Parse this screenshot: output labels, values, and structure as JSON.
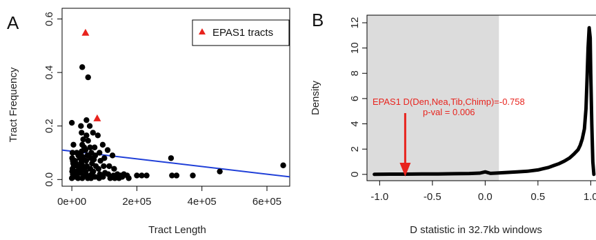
{
  "chart_data": [
    {
      "panel_label": "A",
      "type": "scatter",
      "xlabel": "Tract Length",
      "ylabel": "Tract Frequency",
      "xlim": [
        -30000,
        670000
      ],
      "ylim": [
        -0.025,
        0.64
      ],
      "x_ticks": [
        0,
        200000,
        400000,
        600000
      ],
      "x_tick_labels": [
        "0e+00",
        "2e+05",
        "4e+05",
        "6e+05"
      ],
      "y_ticks": [
        0.0,
        0.2,
        0.4,
        0.6
      ],
      "y_tick_labels": [
        "0.0",
        "0.2",
        "0.4",
        "0.6"
      ],
      "legend": {
        "position": "top-right",
        "entries": [
          "EPAS1 tracts"
        ]
      },
      "series": [
        {
          "marker": "circle",
          "color": "#000000",
          "points": [
            [
              0,
              0.212
            ],
            [
              5000,
              0.13
            ],
            [
              2000,
              0.1
            ],
            [
              1000,
              0.08
            ],
            [
              3000,
              0.07
            ],
            [
              4000,
              0.06
            ],
            [
              6000,
              0.05
            ],
            [
              2000,
              0.04
            ],
            [
              1000,
              0.03
            ],
            [
              3000,
              0.02
            ],
            [
              5000,
              0.01
            ],
            [
              0,
              0.005
            ],
            [
              15000,
              0.1
            ],
            [
              20000,
              0.09
            ],
            [
              25000,
              0.08
            ],
            [
              10000,
              0.07
            ],
            [
              12000,
              0.06
            ],
            [
              18000,
              0.05
            ],
            [
              22000,
              0.04
            ],
            [
              14000,
              0.03
            ],
            [
              16000,
              0.02
            ],
            [
              11000,
              0.01
            ],
            [
              19000,
              0.005
            ],
            [
              28000,
              0.2
            ],
            [
              30000,
              0.175
            ],
            [
              35000,
              0.15
            ],
            [
              32000,
              0.13
            ],
            [
              38000,
              0.12
            ],
            [
              30000,
              0.105
            ],
            [
              27000,
              0.095
            ],
            [
              33000,
              0.085
            ],
            [
              36000,
              0.075
            ],
            [
              29000,
              0.065
            ],
            [
              31000,
              0.055
            ],
            [
              34000,
              0.045
            ],
            [
              37000,
              0.035
            ],
            [
              26000,
              0.025
            ],
            [
              39000,
              0.015
            ],
            [
              32000,
              0.005
            ],
            [
              32000,
              0.42
            ],
            [
              45000,
              0.222
            ],
            [
              45000,
              0.165
            ],
            [
              50000,
              0.145
            ],
            [
              42000,
              0.11
            ],
            [
              48000,
              0.09
            ],
            [
              44000,
              0.07
            ],
            [
              46000,
              0.05
            ],
            [
              43000,
              0.03
            ],
            [
              47000,
              0.015
            ],
            [
              49000,
              0.005
            ],
            [
              50000,
              0.382
            ],
            [
              55000,
              0.2
            ],
            [
              56000,
              0.12
            ],
            [
              60000,
              0.1
            ],
            [
              58000,
              0.08
            ],
            [
              62000,
              0.06
            ],
            [
              57000,
              0.04
            ],
            [
              61000,
              0.02
            ],
            [
              59000,
              0.005
            ],
            [
              65000,
              0.175
            ],
            [
              70000,
              0.12
            ],
            [
              72000,
              0.09
            ],
            [
              68000,
              0.075
            ],
            [
              74000,
              0.05
            ],
            [
              66000,
              0.03
            ],
            [
              71000,
              0.01
            ],
            [
              80000,
              0.165
            ],
            [
              85000,
              0.1
            ],
            [
              88000,
              0.07
            ],
            [
              82000,
              0.04
            ],
            [
              86000,
              0.02
            ],
            [
              84000,
              0.005
            ],
            [
              95000,
              0.13
            ],
            [
              100000,
              0.08
            ],
            [
              98000,
              0.05
            ],
            [
              102000,
              0.025
            ],
            [
              96000,
              0.01
            ],
            [
              110000,
              0.11
            ],
            [
              115000,
              0.05
            ],
            [
              112000,
              0.02
            ],
            [
              118000,
              0.005
            ],
            [
              125000,
              0.09
            ],
            [
              130000,
              0.04
            ],
            [
              128000,
              0.015
            ],
            [
              132000,
              0.005
            ],
            [
              140000,
              0.02
            ],
            [
              145000,
              0.005
            ],
            [
              150000,
              0.015
            ],
            [
              155000,
              0.01
            ],
            [
              160000,
              0.02
            ],
            [
              170000,
              0.015
            ],
            [
              175000,
              0.005
            ],
            [
              200000,
              0.015
            ],
            [
              215000,
              0.015
            ],
            [
              230000,
              0.015
            ],
            [
              305000,
              0.08
            ],
            [
              308000,
              0.015
            ],
            [
              322000,
              0.015
            ],
            [
              372000,
              0.015
            ],
            [
              455000,
              0.03
            ],
            [
              650000,
              0.053
            ]
          ]
        },
        {
          "name": "EPAS1 tracts",
          "marker": "triangle",
          "color": "#e8231d",
          "points": [
            [
              42000,
              0.548
            ],
            [
              78000,
              0.228
            ]
          ]
        }
      ],
      "regression_line": {
        "color": "#1f3fd8",
        "points": [
          [
            -30000,
            0.11
          ],
          [
            670000,
            0.01
          ]
        ]
      }
    },
    {
      "panel_label": "B",
      "type": "line",
      "xlabel": "D statistic in 32.7kb windows",
      "ylabel": "Density",
      "xlim": [
        -1.12,
        1.05
      ],
      "ylim": [
        -0.5,
        12.6
      ],
      "x_ticks": [
        -1.0,
        -0.5,
        0.0,
        0.5,
        1.0
      ],
      "x_tick_labels": [
        "-1.0",
        "-0.5",
        "0.0",
        "0.5",
        "1.0"
      ],
      "y_ticks": [
        0,
        2,
        4,
        6,
        8,
        10,
        12
      ],
      "y_tick_labels": [
        "0",
        "2",
        "4",
        "6",
        "8",
        "10",
        "12"
      ],
      "shaded_region": {
        "x": [
          -1.12,
          0.13
        ],
        "color": "#dcdcdc"
      },
      "series": [
        {
          "color": "#000000",
          "x": [
            -1.05,
            -0.9,
            -0.75,
            -0.6,
            -0.45,
            -0.3,
            -0.15,
            -0.05,
            0.0,
            0.05,
            0.1,
            0.2,
            0.3,
            0.4,
            0.5,
            0.55,
            0.6,
            0.65,
            0.7,
            0.75,
            0.8,
            0.84,
            0.88,
            0.9,
            0.92,
            0.94,
            0.955,
            0.965,
            0.975,
            0.985,
            0.995,
            1.0,
            1.01,
            1.02,
            1.03
          ],
          "y": [
            0.0,
            0.02,
            0.02,
            0.03,
            0.03,
            0.05,
            0.07,
            0.1,
            0.2,
            0.08,
            0.1,
            0.15,
            0.2,
            0.25,
            0.35,
            0.45,
            0.55,
            0.7,
            0.85,
            1.05,
            1.3,
            1.6,
            1.95,
            2.3,
            2.8,
            3.6,
            5.2,
            7.5,
            10.0,
            11.6,
            10.8,
            8.0,
            4.0,
            1.0,
            0.0
          ]
        }
      ],
      "annotation": {
        "lines": [
          "EPAS1 D(Den,Nea,Tib,Chimp)=-0.758",
          "p-val = 0.006"
        ],
        "color": "#e8231d",
        "arrow_x": -0.758
      }
    }
  ]
}
